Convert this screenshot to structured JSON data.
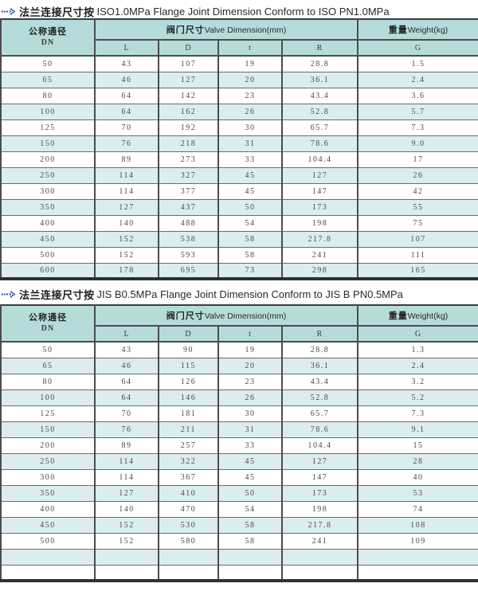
{
  "colors": {
    "header_bg": "#b5dcdb",
    "row_alt_bg": "#dcedef",
    "border_dark": "#3d3d3d",
    "grid_line": "#4c4c4c",
    "text": "#4a4a4a",
    "icon_blue": "#2d5fa6"
  },
  "icons": [
    {
      "name": "dashed-arrow-icon",
      "meaning": "section bullet, blue dashed arrow"
    }
  ],
  "sections": [
    {
      "title": {
        "zh": "法兰连接尺寸按",
        "en": "ISO1.0MPa Flange Joint Dimension Conform to ISO PN1.0MPa"
      },
      "table": {
        "header": {
          "dn_zh": "公称通径",
          "dn_en": "DN",
          "dim_zh": "阀门尺寸",
          "dim_en": "Valve Dimension(mm)",
          "weight_zh": "重量",
          "weight_en": "Weight(kg)",
          "subcols": [
            "L",
            "D",
            "t",
            "R"
          ],
          "weight_subcol": "G"
        },
        "rows": [
          [
            "50",
            "43",
            "107",
            "19",
            "28.8",
            "1.5"
          ],
          [
            "65",
            "46",
            "127",
            "20",
            "36.1",
            "2.4"
          ],
          [
            "80",
            "64",
            "142",
            "23",
            "43.4",
            "3.6"
          ],
          [
            "100",
            "64",
            "162",
            "26",
            "52.8",
            "5.7"
          ],
          [
            "125",
            "70",
            "192",
            "30",
            "65.7",
            "7.3"
          ],
          [
            "150",
            "76",
            "218",
            "31",
            "78.6",
            "9.0"
          ],
          [
            "200",
            "89",
            "273",
            "33",
            "104.4",
            "17"
          ],
          [
            "250",
            "114",
            "327",
            "45",
            "127",
            "26"
          ],
          [
            "300",
            "114",
            "377",
            "45",
            "147",
            "42"
          ],
          [
            "350",
            "127",
            "437",
            "50",
            "173",
            "55"
          ],
          [
            "400",
            "140",
            "488",
            "54",
            "198",
            "75"
          ],
          [
            "450",
            "152",
            "538",
            "58",
            "217.8",
            "107"
          ],
          [
            "500",
            "152",
            "593",
            "58",
            "241",
            "111"
          ],
          [
            "600",
            "178",
            "695",
            "73",
            "298",
            "165"
          ]
        ]
      }
    },
    {
      "title": {
        "zh": "法兰连接尺寸按",
        "en": "JIS B0.5MPa Flange Joint Dimension Conform to JIS B PN0.5MPa"
      },
      "table": {
        "header": {
          "dn_zh": "公称通径",
          "dn_en": "DN",
          "dim_zh": "阀门尺寸",
          "dim_en": "Valve Dimension(mm)",
          "weight_zh": "重量",
          "weight_en": "Weight(kg)",
          "subcols": [
            "L",
            "D",
            "t",
            "R"
          ],
          "weight_subcol": "G"
        },
        "rows": [
          [
            "50",
            "43",
            "90",
            "19",
            "28.8",
            "1.3"
          ],
          [
            "65",
            "46",
            "115",
            "20",
            "36.1",
            "2.4"
          ],
          [
            "80",
            "64",
            "126",
            "23",
            "43.4",
            "3.2"
          ],
          [
            "100",
            "64",
            "146",
            "26",
            "52.8",
            "5.2"
          ],
          [
            "125",
            "70",
            "181",
            "30",
            "65.7",
            "7.3"
          ],
          [
            "150",
            "76",
            "211",
            "31",
            "78.6",
            "9.1"
          ],
          [
            "200",
            "89",
            "257",
            "33",
            "104.4",
            "15"
          ],
          [
            "250",
            "114",
            "322",
            "45",
            "127",
            "28"
          ],
          [
            "300",
            "114",
            "367",
            "45",
            "147",
            "40"
          ],
          [
            "350",
            "127",
            "410",
            "50",
            "173",
            "53"
          ],
          [
            "400",
            "140",
            "470",
            "54",
            "198",
            "74"
          ],
          [
            "450",
            "152",
            "530",
            "58",
            "217.8",
            "108"
          ],
          [
            "500",
            "152",
            "580",
            "58",
            "241",
            "109"
          ],
          [
            "",
            "",
            "",
            "",
            "",
            ""
          ],
          [
            "",
            "",
            "",
            "",
            "",
            ""
          ]
        ]
      }
    }
  ]
}
